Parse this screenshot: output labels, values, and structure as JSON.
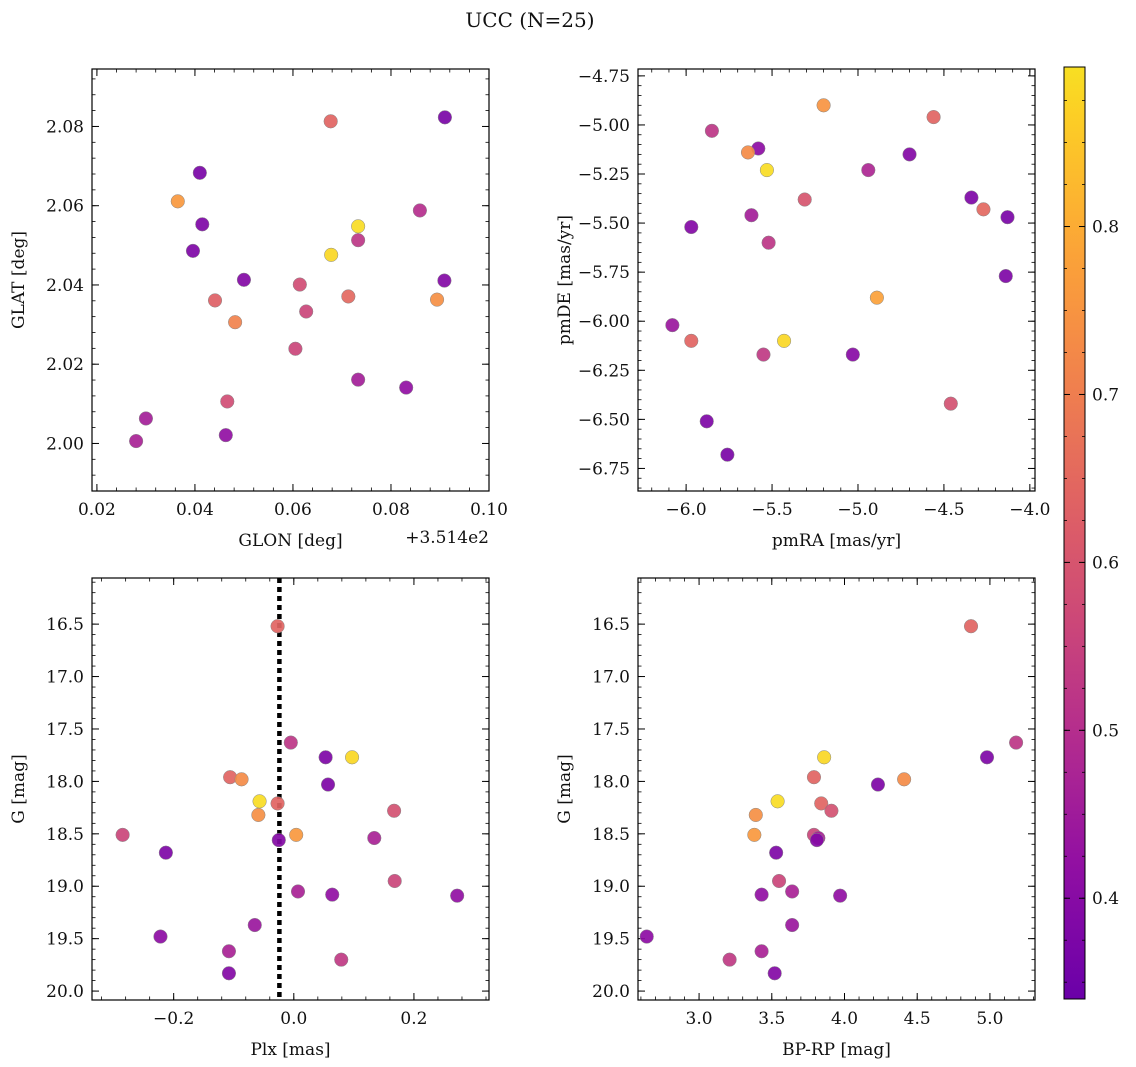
{
  "title": "UCC (N=25)",
  "colorbar": {
    "min": 0.34,
    "max": 0.895,
    "ticks": [
      0.4,
      0.5,
      0.6,
      0.7,
      0.8
    ],
    "tick_labels": [
      "0.4",
      "0.5",
      "0.6",
      "0.7",
      "0.8"
    ],
    "colormap": "plasma"
  },
  "chart_data": [
    {
      "type": "scatter",
      "panel": "top-left",
      "xlabel": "GLON [deg]",
      "ylabel": "GLAT [deg]",
      "offset_text": "+3.514e2",
      "xlim": [
        0.019,
        0.1
      ],
      "ylim": [
        1.988,
        2.0945
      ],
      "xticks": [
        0.02,
        0.04,
        0.06,
        0.08,
        0.1
      ],
      "xtick_labels": [
        "0.02",
        "0.04",
        "0.06",
        "0.08",
        "0.10"
      ],
      "yticks": [
        2.0,
        2.02,
        2.04,
        2.06,
        2.08
      ],
      "ytick_labels": [
        "2.00",
        "2.02",
        "2.04",
        "2.06",
        "2.08"
      ],
      "x": [
        0.091,
        0.0677,
        0.041,
        0.0365,
        0.0415,
        0.0859,
        0.0733,
        0.0733,
        0.0396,
        0.0678,
        0.05,
        0.0909,
        0.0614,
        0.0713,
        0.0441,
        0.0894,
        0.0627,
        0.0482,
        0.0605,
        0.0733,
        0.0831,
        0.0466,
        0.03,
        0.0463,
        0.028
      ],
      "y": [
        2.0823,
        2.0813,
        2.0683,
        2.0611,
        2.0553,
        2.0588,
        2.0548,
        2.0513,
        2.0486,
        2.0476,
        2.0413,
        2.0411,
        2.0401,
        2.0371,
        2.0361,
        2.0363,
        2.0333,
        2.0306,
        2.0239,
        2.0161,
        2.0141,
        2.0106,
        2.0063,
        2.0021,
        2.0006
      ],
      "c": [
        0.37,
        0.64,
        0.37,
        0.76,
        0.38,
        0.5,
        0.89,
        0.52,
        0.38,
        0.88,
        0.39,
        0.39,
        0.58,
        0.65,
        0.63,
        0.74,
        0.56,
        0.71,
        0.56,
        0.46,
        0.42,
        0.58,
        0.46,
        0.42,
        0.47
      ]
    },
    {
      "type": "scatter",
      "panel": "top-right",
      "xlabel": "pmRA [mas/yr]",
      "ylabel": "pmDE [mas/yr]",
      "xlim": [
        -6.28,
        -3.97
      ],
      "ylim": [
        -6.865,
        -4.715
      ],
      "xticks": [
        -6.0,
        -5.5,
        -5.0,
        -4.5,
        -4.0
      ],
      "xtick_labels": [
        "−6.0",
        "−5.5",
        "−5.0",
        "−4.5",
        "−4.0"
      ],
      "yticks": [
        -4.75,
        -5.0,
        -5.25,
        -5.5,
        -5.75,
        -6.0,
        -6.25,
        -6.5,
        -6.75
      ],
      "ytick_labels": [
        "−4.75",
        "−5.00",
        "−5.25",
        "−5.50",
        "−5.75",
        "−6.00",
        "−6.25",
        "−6.50",
        "−6.75"
      ],
      "x": [
        -5.2,
        -4.56,
        -5.85,
        -5.58,
        -5.64,
        -4.7,
        -5.53,
        -4.94,
        -5.31,
        -4.34,
        -4.27,
        -4.13,
        -5.97,
        -5.62,
        -5.52,
        -4.14,
        -4.89,
        -6.08,
        -5.97,
        -5.43,
        -5.55,
        -5.03,
        -4.46,
        -5.88,
        -5.76
      ],
      "y": [
        -4.9,
        -4.96,
        -5.03,
        -5.12,
        -5.14,
        -5.15,
        -5.23,
        -5.23,
        -5.38,
        -5.37,
        -5.43,
        -5.47,
        -5.52,
        -5.46,
        -5.6,
        -5.77,
        -5.88,
        -6.02,
        -6.1,
        -6.1,
        -6.17,
        -6.17,
        -6.42,
        -6.51,
        -6.68
      ],
      "c": [
        0.75,
        0.64,
        0.52,
        0.41,
        0.73,
        0.39,
        0.89,
        0.48,
        0.6,
        0.38,
        0.65,
        0.37,
        0.39,
        0.46,
        0.52,
        0.38,
        0.78,
        0.44,
        0.64,
        0.88,
        0.53,
        0.4,
        0.59,
        0.38,
        0.37
      ]
    },
    {
      "type": "scatter",
      "panel": "bottom-left",
      "xlabel": "Plx [mas]",
      "ylabel": "G [mag]",
      "ylim": [
        20.085,
        16.06
      ],
      "xlim": [
        -0.336,
        0.325
      ],
      "y_inverted": true,
      "xticks": [
        -0.2,
        0.0,
        0.2
      ],
      "xtick_labels": [
        "−0.2",
        "0.0",
        "0.2"
      ],
      "yticks": [
        16.5,
        17.0,
        17.5,
        18.0,
        18.5,
        19.0,
        19.5,
        20.0
      ],
      "ytick_labels": [
        "16.5",
        "17.0",
        "17.5",
        "18.0",
        "18.5",
        "19.0",
        "19.5",
        "20.0"
      ],
      "vline_x": -0.024,
      "x": [
        -0.027,
        -0.005,
        0.097,
        0.053,
        -0.106,
        -0.087,
        0.057,
        -0.057,
        -0.027,
        -0.059,
        0.167,
        0.004,
        -0.285,
        0.134,
        -0.025,
        -0.213,
        0.168,
        0.007,
        0.064,
        0.272,
        -0.065,
        -0.222,
        -0.108,
        0.079,
        -0.108
      ],
      "y": [
        16.52,
        17.63,
        17.77,
        17.77,
        17.96,
        17.98,
        18.03,
        18.19,
        18.21,
        18.32,
        18.28,
        18.51,
        18.51,
        18.54,
        18.56,
        18.68,
        18.95,
        19.05,
        19.08,
        19.09,
        19.37,
        19.48,
        19.62,
        19.7,
        19.83
      ],
      "c": [
        0.64,
        0.52,
        0.88,
        0.38,
        0.64,
        0.73,
        0.38,
        0.89,
        0.64,
        0.74,
        0.59,
        0.76,
        0.56,
        0.47,
        0.39,
        0.38,
        0.56,
        0.47,
        0.42,
        0.42,
        0.44,
        0.41,
        0.47,
        0.53,
        0.39
      ]
    },
    {
      "type": "scatter",
      "panel": "bottom-right",
      "xlabel": "BP-RP [mag]",
      "ylabel": "G [mag]",
      "ylim": [
        20.085,
        16.06
      ],
      "xlim": [
        2.58,
        5.31
      ],
      "y_inverted": true,
      "xticks": [
        3.0,
        3.5,
        4.0,
        4.5,
        5.0
      ],
      "xtick_labels": [
        "3.0",
        "3.5",
        "4.0",
        "4.5",
        "5.0"
      ],
      "yticks": [
        16.5,
        17.0,
        17.5,
        18.0,
        18.5,
        19.0,
        19.5,
        20.0
      ],
      "ytick_labels": [
        "16.5",
        "17.0",
        "17.5",
        "18.0",
        "18.5",
        "19.0",
        "19.5",
        "20.0"
      ],
      "x": [
        4.87,
        5.18,
        3.86,
        4.98,
        3.79,
        4.41,
        4.23,
        3.54,
        3.84,
        3.39,
        3.91,
        3.38,
        3.79,
        3.82,
        3.81,
        3.53,
        3.55,
        3.64,
        3.43,
        3.97,
        3.64,
        2.64,
        3.43,
        3.21,
        3.52
      ],
      "y": [
        16.52,
        17.63,
        17.77,
        17.77,
        17.96,
        17.98,
        18.03,
        18.19,
        18.21,
        18.32,
        18.28,
        18.51,
        18.51,
        18.54,
        18.56,
        18.68,
        18.95,
        19.05,
        19.08,
        19.09,
        19.37,
        19.48,
        19.62,
        19.7,
        19.83
      ],
      "c": [
        0.64,
        0.52,
        0.88,
        0.38,
        0.64,
        0.73,
        0.38,
        0.89,
        0.64,
        0.74,
        0.59,
        0.76,
        0.56,
        0.47,
        0.39,
        0.38,
        0.56,
        0.47,
        0.42,
        0.42,
        0.44,
        0.41,
        0.47,
        0.53,
        0.39
      ]
    }
  ]
}
